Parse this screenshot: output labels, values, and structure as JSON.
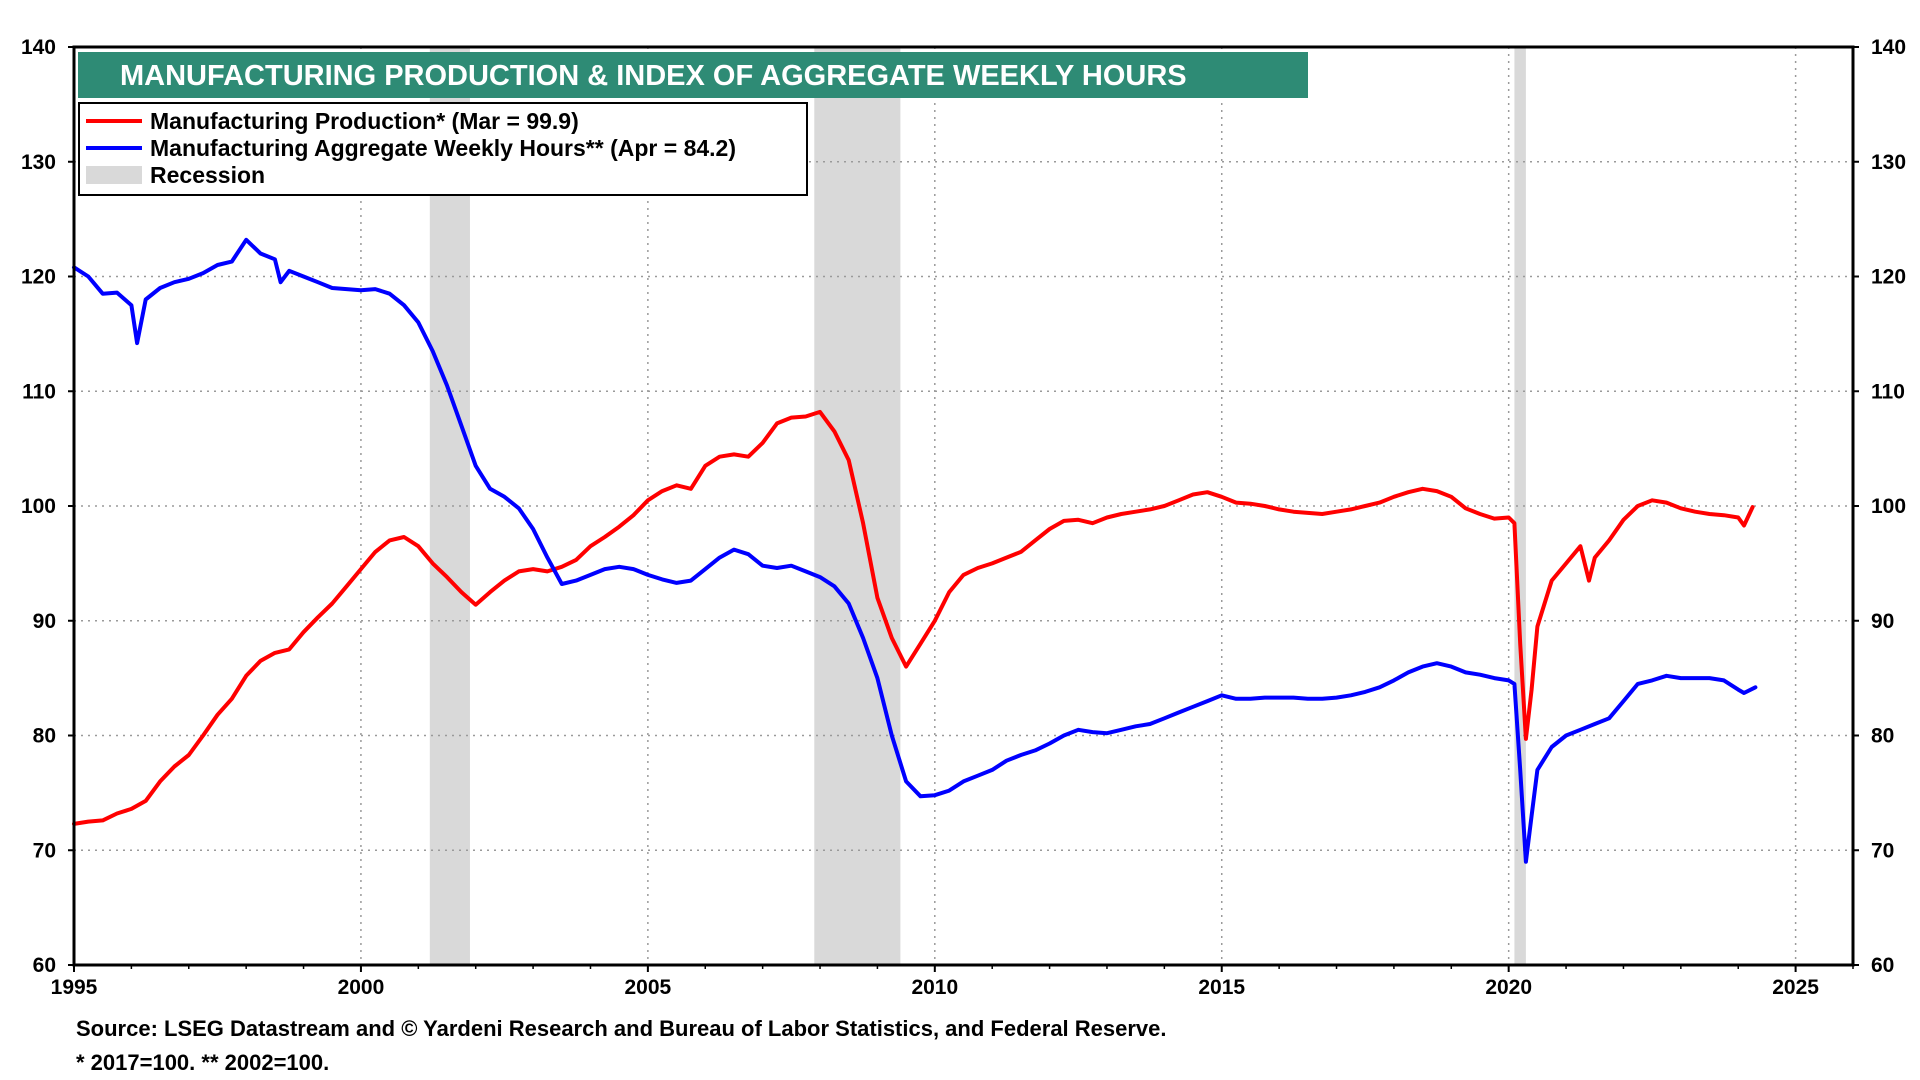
{
  "chart_data": {
    "type": "line",
    "title": "MANUFACTURING PRODUCTION & INDEX OF AGGREGATE WEEKLY HOURS",
    "xlim": [
      1995,
      2026
    ],
    "ylim": [
      60,
      140
    ],
    "x_ticks": [
      1995,
      2000,
      2005,
      2010,
      2015,
      2020,
      2025
    ],
    "y_ticks": [
      60,
      70,
      80,
      90,
      100,
      110,
      120,
      130,
      140
    ],
    "grid": true,
    "legend_position": "top-left",
    "recessions": [
      [
        2001.2,
        2001.9
      ],
      [
        2007.9,
        2009.4
      ],
      [
        2020.1,
        2020.3
      ]
    ],
    "recession_label": "Recession",
    "recession_color": "#d9d9d9",
    "series": [
      {
        "name": "Manufacturing Production* (Mar = 99.9)",
        "color": "#ff0000",
        "points": [
          [
            1995.0,
            72.3
          ],
          [
            1995.25,
            72.5
          ],
          [
            1995.5,
            72.6
          ],
          [
            1995.75,
            73.2
          ],
          [
            1996.0,
            73.6
          ],
          [
            1996.25,
            74.3
          ],
          [
            1996.5,
            76.0
          ],
          [
            1996.75,
            77.3
          ],
          [
            1997.0,
            78.3
          ],
          [
            1997.25,
            80.0
          ],
          [
            1997.5,
            81.8
          ],
          [
            1997.75,
            83.2
          ],
          [
            1998.0,
            85.2
          ],
          [
            1998.25,
            86.5
          ],
          [
            1998.5,
            87.2
          ],
          [
            1998.75,
            87.5
          ],
          [
            1999.0,
            89.0
          ],
          [
            1999.25,
            90.3
          ],
          [
            1999.5,
            91.5
          ],
          [
            1999.75,
            93.0
          ],
          [
            2000.0,
            94.5
          ],
          [
            2000.25,
            96.0
          ],
          [
            2000.5,
            97.0
          ],
          [
            2000.75,
            97.3
          ],
          [
            2001.0,
            96.5
          ],
          [
            2001.25,
            95.0
          ],
          [
            2001.5,
            93.8
          ],
          [
            2001.75,
            92.5
          ],
          [
            2002.0,
            91.4
          ],
          [
            2002.25,
            92.5
          ],
          [
            2002.5,
            93.5
          ],
          [
            2002.75,
            94.3
          ],
          [
            2003.0,
            94.5
          ],
          [
            2003.25,
            94.3
          ],
          [
            2003.5,
            94.7
          ],
          [
            2003.75,
            95.3
          ],
          [
            2004.0,
            96.5
          ],
          [
            2004.25,
            97.3
          ],
          [
            2004.5,
            98.2
          ],
          [
            2004.75,
            99.2
          ],
          [
            2005.0,
            100.5
          ],
          [
            2005.25,
            101.3
          ],
          [
            2005.5,
            101.8
          ],
          [
            2005.75,
            101.5
          ],
          [
            2006.0,
            103.5
          ],
          [
            2006.25,
            104.3
          ],
          [
            2006.5,
            104.5
          ],
          [
            2006.75,
            104.3
          ],
          [
            2007.0,
            105.5
          ],
          [
            2007.25,
            107.2
          ],
          [
            2007.5,
            107.7
          ],
          [
            2007.75,
            107.8
          ],
          [
            2008.0,
            108.2
          ],
          [
            2008.25,
            106.5
          ],
          [
            2008.5,
            104.0
          ],
          [
            2008.75,
            98.5
          ],
          [
            2009.0,
            92.0
          ],
          [
            2009.25,
            88.5
          ],
          [
            2009.5,
            86.0
          ],
          [
            2009.75,
            88.0
          ],
          [
            2010.0,
            90.0
          ],
          [
            2010.25,
            92.5
          ],
          [
            2010.5,
            94.0
          ],
          [
            2010.75,
            94.6
          ],
          [
            2011.0,
            95.0
          ],
          [
            2011.25,
            95.5
          ],
          [
            2011.5,
            96.0
          ],
          [
            2011.75,
            97.0
          ],
          [
            2012.0,
            98.0
          ],
          [
            2012.25,
            98.7
          ],
          [
            2012.5,
            98.8
          ],
          [
            2012.75,
            98.5
          ],
          [
            2013.0,
            99.0
          ],
          [
            2013.25,
            99.3
          ],
          [
            2013.5,
            99.5
          ],
          [
            2013.75,
            99.7
          ],
          [
            2014.0,
            100.0
          ],
          [
            2014.25,
            100.5
          ],
          [
            2014.5,
            101.0
          ],
          [
            2014.75,
            101.2
          ],
          [
            2015.0,
            100.8
          ],
          [
            2015.25,
            100.3
          ],
          [
            2015.5,
            100.2
          ],
          [
            2015.75,
            100.0
          ],
          [
            2016.0,
            99.7
          ],
          [
            2016.25,
            99.5
          ],
          [
            2016.5,
            99.4
          ],
          [
            2016.75,
            99.3
          ],
          [
            2017.0,
            99.5
          ],
          [
            2017.25,
            99.7
          ],
          [
            2017.5,
            100.0
          ],
          [
            2017.75,
            100.3
          ],
          [
            2018.0,
            100.8
          ],
          [
            2018.25,
            101.2
          ],
          [
            2018.5,
            101.5
          ],
          [
            2018.75,
            101.3
          ],
          [
            2019.0,
            100.8
          ],
          [
            2019.25,
            99.8
          ],
          [
            2019.5,
            99.3
          ],
          [
            2019.75,
            98.9
          ],
          [
            2020.0,
            99.0
          ],
          [
            2020.1,
            98.5
          ],
          [
            2020.2,
            88.0
          ],
          [
            2020.3,
            79.7
          ],
          [
            2020.4,
            84.0
          ],
          [
            2020.5,
            89.5
          ],
          [
            2020.75,
            93.5
          ],
          [
            2021.0,
            95.0
          ],
          [
            2021.25,
            96.5
          ],
          [
            2021.4,
            93.5
          ],
          [
            2021.5,
            95.5
          ],
          [
            2021.75,
            97.0
          ],
          [
            2022.0,
            98.8
          ],
          [
            2022.25,
            100.0
          ],
          [
            2022.5,
            100.5
          ],
          [
            2022.75,
            100.3
          ],
          [
            2023.0,
            99.8
          ],
          [
            2023.25,
            99.5
          ],
          [
            2023.5,
            99.3
          ],
          [
            2023.75,
            99.2
          ],
          [
            2024.0,
            99.0
          ],
          [
            2024.1,
            98.3
          ],
          [
            2024.25,
            99.9
          ]
        ]
      },
      {
        "name": "Manufacturing Aggregate Weekly Hours** (Apr = 84.2)",
        "color": "#0000ff",
        "points": [
          [
            1995.0,
            120.8
          ],
          [
            1995.25,
            120.0
          ],
          [
            1995.5,
            118.5
          ],
          [
            1995.75,
            118.6
          ],
          [
            1996.0,
            117.5
          ],
          [
            1996.1,
            114.2
          ],
          [
            1996.25,
            118.0
          ],
          [
            1996.5,
            119.0
          ],
          [
            1996.75,
            119.5
          ],
          [
            1997.0,
            119.8
          ],
          [
            1997.25,
            120.3
          ],
          [
            1997.5,
            121.0
          ],
          [
            1997.75,
            121.3
          ],
          [
            1998.0,
            123.2
          ],
          [
            1998.25,
            122.0
          ],
          [
            1998.5,
            121.5
          ],
          [
            1998.6,
            119.5
          ],
          [
            1998.75,
            120.5
          ],
          [
            1999.0,
            120.0
          ],
          [
            1999.25,
            119.5
          ],
          [
            1999.5,
            119.0
          ],
          [
            1999.75,
            118.9
          ],
          [
            2000.0,
            118.8
          ],
          [
            2000.25,
            118.9
          ],
          [
            2000.5,
            118.5
          ],
          [
            2000.75,
            117.5
          ],
          [
            2001.0,
            116.0
          ],
          [
            2001.25,
            113.5
          ],
          [
            2001.5,
            110.5
          ],
          [
            2001.75,
            107.0
          ],
          [
            2002.0,
            103.5
          ],
          [
            2002.25,
            101.5
          ],
          [
            2002.5,
            100.8
          ],
          [
            2002.75,
            99.8
          ],
          [
            2003.0,
            98.0
          ],
          [
            2003.25,
            95.5
          ],
          [
            2003.5,
            93.2
          ],
          [
            2003.75,
            93.5
          ],
          [
            2004.0,
            94.0
          ],
          [
            2004.25,
            94.5
          ],
          [
            2004.5,
            94.7
          ],
          [
            2004.75,
            94.5
          ],
          [
            2005.0,
            94.0
          ],
          [
            2005.25,
            93.6
          ],
          [
            2005.5,
            93.3
          ],
          [
            2005.75,
            93.5
          ],
          [
            2006.0,
            94.5
          ],
          [
            2006.25,
            95.5
          ],
          [
            2006.5,
            96.2
          ],
          [
            2006.75,
            95.8
          ],
          [
            2007.0,
            94.8
          ],
          [
            2007.25,
            94.6
          ],
          [
            2007.5,
            94.8
          ],
          [
            2007.75,
            94.3
          ],
          [
            2008.0,
            93.8
          ],
          [
            2008.25,
            93.0
          ],
          [
            2008.5,
            91.5
          ],
          [
            2008.75,
            88.5
          ],
          [
            2009.0,
            85.0
          ],
          [
            2009.25,
            80.0
          ],
          [
            2009.5,
            76.0
          ],
          [
            2009.75,
            74.7
          ],
          [
            2010.0,
            74.8
          ],
          [
            2010.25,
            75.2
          ],
          [
            2010.5,
            76.0
          ],
          [
            2010.75,
            76.5
          ],
          [
            2011.0,
            77.0
          ],
          [
            2011.25,
            77.8
          ],
          [
            2011.5,
            78.3
          ],
          [
            2011.75,
            78.7
          ],
          [
            2012.0,
            79.3
          ],
          [
            2012.25,
            80.0
          ],
          [
            2012.5,
            80.5
          ],
          [
            2012.75,
            80.3
          ],
          [
            2013.0,
            80.2
          ],
          [
            2013.25,
            80.5
          ],
          [
            2013.5,
            80.8
          ],
          [
            2013.75,
            81.0
          ],
          [
            2014.0,
            81.5
          ],
          [
            2014.25,
            82.0
          ],
          [
            2014.5,
            82.5
          ],
          [
            2014.75,
            83.0
          ],
          [
            2015.0,
            83.5
          ],
          [
            2015.25,
            83.2
          ],
          [
            2015.5,
            83.2
          ],
          [
            2015.75,
            83.3
          ],
          [
            2016.0,
            83.3
          ],
          [
            2016.25,
            83.3
          ],
          [
            2016.5,
            83.2
          ],
          [
            2016.75,
            83.2
          ],
          [
            2017.0,
            83.3
          ],
          [
            2017.25,
            83.5
          ],
          [
            2017.5,
            83.8
          ],
          [
            2017.75,
            84.2
          ],
          [
            2018.0,
            84.8
          ],
          [
            2018.25,
            85.5
          ],
          [
            2018.5,
            86.0
          ],
          [
            2018.75,
            86.3
          ],
          [
            2019.0,
            86.0
          ],
          [
            2019.25,
            85.5
          ],
          [
            2019.5,
            85.3
          ],
          [
            2019.75,
            85.0
          ],
          [
            2020.0,
            84.8
          ],
          [
            2020.1,
            84.5
          ],
          [
            2020.2,
            77.0
          ],
          [
            2020.3,
            69.0
          ],
          [
            2020.4,
            73.0
          ],
          [
            2020.5,
            77.0
          ],
          [
            2020.75,
            79.0
          ],
          [
            2021.0,
            80.0
          ],
          [
            2021.25,
            80.5
          ],
          [
            2021.5,
            81.0
          ],
          [
            2021.75,
            81.5
          ],
          [
            2022.0,
            83.0
          ],
          [
            2022.25,
            84.5
          ],
          [
            2022.5,
            84.8
          ],
          [
            2022.75,
            85.2
          ],
          [
            2023.0,
            85.0
          ],
          [
            2023.25,
            85.0
          ],
          [
            2023.5,
            85.0
          ],
          [
            2023.75,
            84.8
          ],
          [
            2024.0,
            84.0
          ],
          [
            2024.1,
            83.7
          ],
          [
            2024.3,
            84.2
          ]
        ]
      }
    ]
  },
  "footnotes": {
    "source": "Source: LSEG Datastream and © Yardeni Research and Bureau of Labor Statistics, and Federal Reserve.",
    "notes": "* 2017=100.    ** 2002=100."
  }
}
